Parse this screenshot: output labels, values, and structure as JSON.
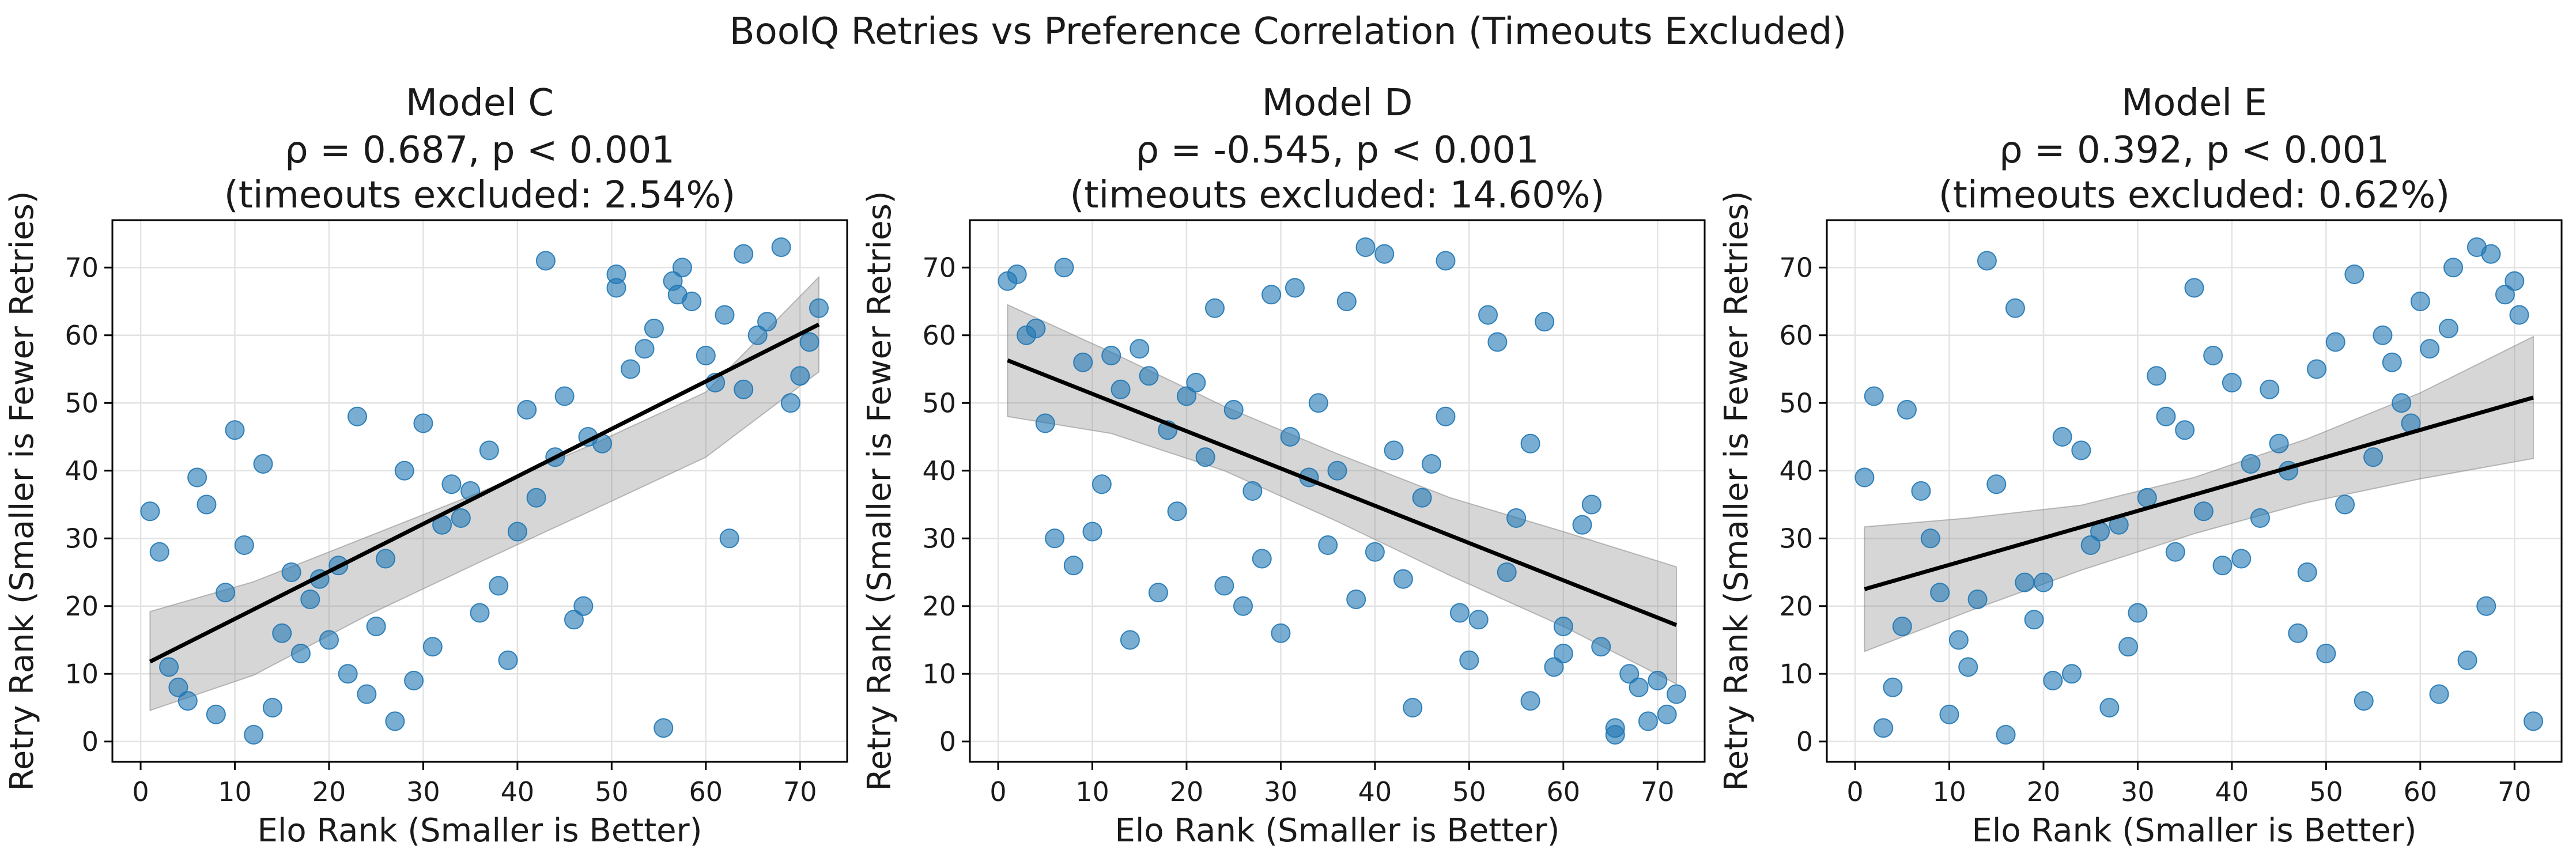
{
  "figure": {
    "suptitle": "BoolQ Retries vs Preference Correlation (Timeouts Excluded)"
  },
  "chart_data": [
    {
      "type": "scatter",
      "title_lines": [
        "Model C",
        "ρ = 0.687, p < 0.001",
        "(timeouts excluded: 2.54%)"
      ],
      "xlabel": "Elo Rank (Smaller is Better)",
      "ylabel": "Retry Rank (Smaller is Fewer Retries)",
      "xlim": [
        -3,
        75
      ],
      "ylim": [
        -3,
        77
      ],
      "xticks": [
        0,
        10,
        20,
        30,
        40,
        50,
        60,
        70
      ],
      "yticks": [
        0,
        10,
        20,
        30,
        40,
        50,
        60,
        70
      ],
      "grid": true,
      "points": [
        [
          1,
          34
        ],
        [
          2,
          28
        ],
        [
          3,
          11
        ],
        [
          4,
          8
        ],
        [
          5,
          6
        ],
        [
          6,
          39
        ],
        [
          7,
          35
        ],
        [
          8,
          4
        ],
        [
          9,
          22
        ],
        [
          10,
          46
        ],
        [
          11,
          29
        ],
        [
          12,
          1
        ],
        [
          13,
          41
        ],
        [
          14,
          5
        ],
        [
          15,
          16
        ],
        [
          16,
          25
        ],
        [
          17,
          13
        ],
        [
          18,
          21
        ],
        [
          19,
          24
        ],
        [
          20,
          15
        ],
        [
          21,
          26
        ],
        [
          22,
          10
        ],
        [
          23,
          48
        ],
        [
          24,
          7
        ],
        [
          25,
          17
        ],
        [
          26,
          27
        ],
        [
          27,
          3
        ],
        [
          28,
          40
        ],
        [
          29,
          9
        ],
        [
          30,
          47
        ],
        [
          31,
          14
        ],
        [
          32,
          32
        ],
        [
          33,
          38
        ],
        [
          34,
          33
        ],
        [
          35,
          37
        ],
        [
          36,
          19
        ],
        [
          37,
          43
        ],
        [
          38,
          23
        ],
        [
          39,
          12
        ],
        [
          40,
          31
        ],
        [
          41,
          49
        ],
        [
          42,
          36
        ],
        [
          43,
          71
        ],
        [
          44,
          42
        ],
        [
          45,
          51
        ],
        [
          46,
          18
        ],
        [
          47,
          20
        ],
        [
          47.5,
          45
        ],
        [
          49,
          44
        ],
        [
          50.5,
          69
        ],
        [
          50.5,
          67
        ],
        [
          52,
          55
        ],
        [
          53.5,
          58
        ],
        [
          54.5,
          61
        ],
        [
          55.5,
          2
        ],
        [
          56.5,
          68
        ],
        [
          57.5,
          70
        ],
        [
          57,
          66
        ],
        [
          58.5,
          65
        ],
        [
          60,
          57
        ],
        [
          61,
          53
        ],
        [
          62,
          63
        ],
        [
          62.5,
          30
        ],
        [
          64,
          72
        ],
        [
          64,
          52
        ],
        [
          65.5,
          60
        ],
        [
          66.5,
          62
        ],
        [
          68,
          73
        ],
        [
          69,
          50
        ],
        [
          70,
          54
        ],
        [
          71,
          59
        ],
        [
          72,
          64
        ]
      ],
      "fit": {
        "x": [
          1,
          72
        ],
        "y": [
          11.8,
          61.6
        ]
      },
      "ci_band": {
        "x": [
          1,
          12,
          24,
          36,
          48,
          60,
          72
        ],
        "lower": [
          4.6,
          9.8,
          18.6,
          26.5,
          34.2,
          42.0,
          54.6
        ],
        "upper": [
          19.2,
          23.6,
          30.2,
          36.8,
          43.9,
          51.6,
          68.6
        ]
      }
    },
    {
      "type": "scatter",
      "title_lines": [
        "Model D",
        "ρ = -0.545, p < 0.001",
        "(timeouts excluded: 14.60%)"
      ],
      "xlabel": "Elo Rank (Smaller is Better)",
      "ylabel": "Retry Rank (Smaller is Fewer Retries)",
      "xlim": [
        -3,
        75
      ],
      "ylim": [
        -3,
        77
      ],
      "xticks": [
        0,
        10,
        20,
        30,
        40,
        50,
        60,
        70
      ],
      "yticks": [
        0,
        10,
        20,
        30,
        40,
        50,
        60,
        70
      ],
      "grid": true,
      "points": [
        [
          1,
          68
        ],
        [
          2,
          69
        ],
        [
          3,
          60
        ],
        [
          4,
          61
        ],
        [
          5,
          47
        ],
        [
          6,
          30
        ],
        [
          7,
          70
        ],
        [
          8,
          26
        ],
        [
          9,
          56
        ],
        [
          10,
          31
        ],
        [
          11,
          38
        ],
        [
          12,
          57
        ],
        [
          13,
          52
        ],
        [
          14,
          15
        ],
        [
          15,
          58
        ],
        [
          16,
          54
        ],
        [
          17,
          22
        ],
        [
          18,
          46
        ],
        [
          19,
          34
        ],
        [
          20,
          51
        ],
        [
          21,
          53
        ],
        [
          22,
          42
        ],
        [
          23,
          64
        ],
        [
          24,
          23
        ],
        [
          25,
          49
        ],
        [
          26,
          20
        ],
        [
          27,
          37
        ],
        [
          28,
          27
        ],
        [
          29,
          66
        ],
        [
          30,
          16
        ],
        [
          31,
          45
        ],
        [
          31.5,
          67
        ],
        [
          33,
          39
        ],
        [
          34,
          50
        ],
        [
          35,
          29
        ],
        [
          36,
          40
        ],
        [
          37,
          65
        ],
        [
          38,
          21
        ],
        [
          39,
          73
        ],
        [
          40,
          28
        ],
        [
          41,
          72
        ],
        [
          42,
          43
        ],
        [
          43,
          24
        ],
        [
          44,
          5
        ],
        [
          45,
          36
        ],
        [
          46,
          41
        ],
        [
          47.5,
          71
        ],
        [
          47.5,
          48
        ],
        [
          49,
          19
        ],
        [
          50,
          12
        ],
        [
          51,
          18
        ],
        [
          52,
          63
        ],
        [
          53,
          59
        ],
        [
          54,
          25
        ],
        [
          55,
          33
        ],
        [
          56.5,
          44
        ],
        [
          56.5,
          6
        ],
        [
          58,
          62
        ],
        [
          59,
          11
        ],
        [
          60,
          17
        ],
        [
          60,
          13
        ],
        [
          62,
          32
        ],
        [
          63,
          35
        ],
        [
          64,
          14
        ],
        [
          65.5,
          1
        ],
        [
          65.5,
          2
        ],
        [
          67,
          10
        ],
        [
          68,
          8
        ],
        [
          69,
          3
        ],
        [
          70,
          9
        ],
        [
          71,
          4
        ],
        [
          72,
          7
        ]
      ],
      "fit": {
        "x": [
          1,
          72
        ],
        "y": [
          56.3,
          17.2
        ]
      },
      "ci_band": {
        "x": [
          1,
          12,
          24,
          36,
          48,
          60,
          72
        ],
        "lower": [
          48.0,
          45.5,
          40.0,
          32.5,
          24.5,
          17.0,
          8.5
        ],
        "upper": [
          64.5,
          57.5,
          49.5,
          42.5,
          36.0,
          31.0,
          25.8
        ]
      }
    },
    {
      "type": "scatter",
      "title_lines": [
        "Model E",
        "ρ = 0.392, p < 0.001",
        "(timeouts excluded: 0.62%)"
      ],
      "xlabel": "Elo Rank (Smaller is Better)",
      "ylabel": "Retry Rank (Smaller is Fewer Retries)",
      "xlim": [
        -3,
        75
      ],
      "ylim": [
        -3,
        77
      ],
      "xticks": [
        0,
        10,
        20,
        30,
        40,
        50,
        60,
        70
      ],
      "yticks": [
        0,
        10,
        20,
        30,
        40,
        50,
        60,
        70
      ],
      "grid": true,
      "points": [
        [
          1,
          39
        ],
        [
          2,
          51
        ],
        [
          3,
          2
        ],
        [
          4,
          8
        ],
        [
          5,
          17
        ],
        [
          5.5,
          49
        ],
        [
          7,
          37
        ],
        [
          8,
          30
        ],
        [
          9,
          22
        ],
        [
          10,
          4
        ],
        [
          11,
          15
        ],
        [
          12,
          11
        ],
        [
          13,
          21
        ],
        [
          14,
          71
        ],
        [
          15,
          38
        ],
        [
          16,
          1
        ],
        [
          17,
          64
        ],
        [
          18,
          23.5
        ],
        [
          19,
          18
        ],
        [
          20,
          23.5
        ],
        [
          21,
          9
        ],
        [
          22,
          45
        ],
        [
          23,
          10
        ],
        [
          24,
          43
        ],
        [
          25,
          29
        ],
        [
          26,
          31
        ],
        [
          27,
          5
        ],
        [
          28,
          32
        ],
        [
          29,
          14
        ],
        [
          30,
          19
        ],
        [
          31,
          36
        ],
        [
          32,
          54
        ],
        [
          33,
          48
        ],
        [
          34,
          28
        ],
        [
          35,
          46
        ],
        [
          36,
          67
        ],
        [
          37,
          34
        ],
        [
          38,
          57
        ],
        [
          39,
          26
        ],
        [
          40,
          53
        ],
        [
          41,
          27
        ],
        [
          42,
          41
        ],
        [
          43,
          33
        ],
        [
          44,
          52
        ],
        [
          45,
          44
        ],
        [
          46,
          40
        ],
        [
          47,
          16
        ],
        [
          48,
          25
        ],
        [
          49,
          55
        ],
        [
          50,
          13
        ],
        [
          51,
          59
        ],
        [
          52,
          35
        ],
        [
          53,
          69
        ],
        [
          54,
          6
        ],
        [
          55,
          42
        ],
        [
          56,
          60
        ],
        [
          57,
          56
        ],
        [
          58,
          50
        ],
        [
          59,
          47
        ],
        [
          60,
          65
        ],
        [
          61,
          58
        ],
        [
          62,
          7
        ],
        [
          63,
          61
        ],
        [
          63.5,
          70
        ],
        [
          65,
          12
        ],
        [
          66,
          73
        ],
        [
          67,
          20
        ],
        [
          67.5,
          72
        ],
        [
          69,
          66
        ],
        [
          70,
          68
        ],
        [
          70.5,
          63
        ],
        [
          72,
          3
        ]
      ],
      "fit": {
        "x": [
          1,
          72
        ],
        "y": [
          22.5,
          50.8
        ]
      },
      "ci_band": {
        "x": [
          1,
          12,
          24,
          36,
          48,
          60,
          72
        ],
        "lower": [
          13.3,
          19.2,
          25.3,
          30.7,
          35.3,
          38.8,
          41.8
        ],
        "upper": [
          31.7,
          33.0,
          34.9,
          39.0,
          44.7,
          51.5,
          59.8
        ]
      }
    }
  ]
}
